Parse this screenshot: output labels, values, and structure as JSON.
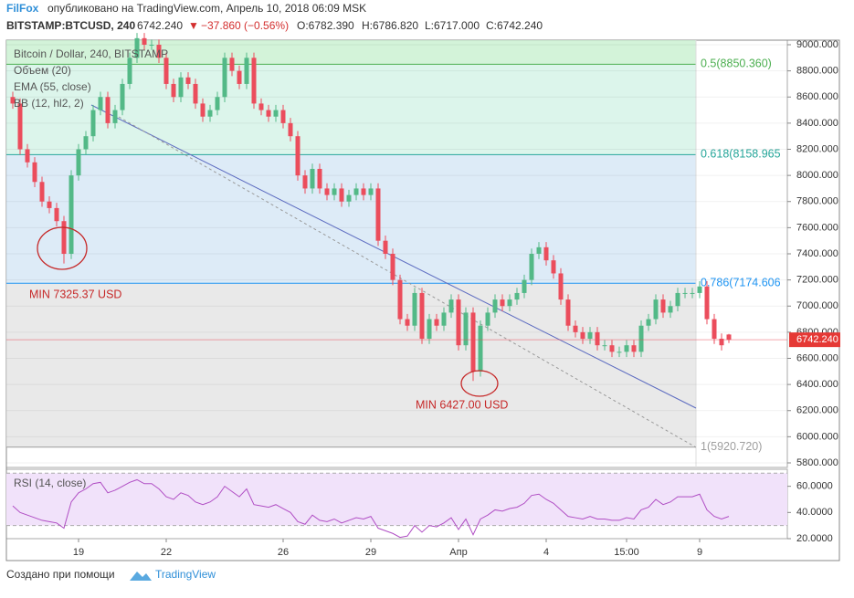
{
  "header": {
    "brand": "FilFox",
    "published": "опубликовано на TradingView.com, Апрель 10, 2018 06:09 MSK",
    "symbol": "BITSTAMP:BTCUSD, 240",
    "last": "6742.240",
    "arrow": "▼",
    "change": "−37.860 (−0.56%)",
    "o": "O:6782.390",
    "h": "H:6786.820",
    "l": "L:6717.000",
    "c": "C:6742.240"
  },
  "legend": [
    "Bitcoin / Dollar, 240, BITSTAMP",
    "Объем (20)",
    "EMA (55, close)",
    "BB (12, hl2, 2)"
  ],
  "footer": {
    "text": "Создано при помощи",
    "brand": "TradingView"
  },
  "chart_data": [
    {
      "type": "candlestick",
      "up_color": "#53b987",
      "down_color": "#eb4d5c",
      "categories": [
        null,
        null,
        null,
        null,
        null,
        null,
        null,
        null,
        null,
        "19",
        null,
        null,
        null,
        null,
        null,
        null,
        null,
        null,
        null,
        null,
        null,
        "22",
        null,
        null,
        null,
        null,
        null,
        null,
        null,
        null,
        null,
        null,
        null,
        null,
        null,
        null,
        null,
        "26",
        null,
        null,
        null,
        null,
        null,
        null,
        null,
        null,
        null,
        null,
        null,
        "29",
        null,
        null,
        null,
        null,
        null,
        null,
        null,
        null,
        null,
        null,
        null,
        "Апр",
        null,
        null,
        null,
        null,
        null,
        null,
        null,
        null,
        null,
        null,
        null,
        "4",
        null,
        null,
        null,
        null,
        null,
        null,
        null,
        null,
        null,
        null,
        "15:00",
        null,
        null,
        null,
        null,
        null,
        null,
        null,
        null,
        null,
        "9",
        null,
        null,
        null,
        null
      ],
      "open": [
        8600,
        8550,
        8200,
        8100,
        7950,
        7800,
        7750,
        7650,
        7400,
        8000,
        8200,
        8300,
        8500,
        8600,
        8400,
        8500,
        8700,
        8900,
        9050,
        9000,
        9000,
        8900,
        8700,
        8600,
        8750,
        8700,
        8550,
        8450,
        8500,
        8600,
        8900,
        8800,
        8700,
        8900,
        8550,
        8500,
        8450,
        8500,
        8400,
        8300,
        8000,
        7900,
        8050,
        7900,
        7850,
        7900,
        7800,
        7850,
        7900,
        7850,
        7900,
        7500,
        7400,
        7200,
        6900,
        6850,
        7100,
        6750,
        6900,
        6850,
        6950,
        7050,
        6700,
        6950,
        6500,
        6850,
        6950,
        7050,
        7000,
        7050,
        7100,
        7200,
        7400,
        7450,
        7350,
        7250,
        7050,
        6850,
        6800,
        6750,
        6800,
        6700,
        6700,
        6650,
        6650,
        6700,
        6650,
        6850,
        6900,
        7050,
        6950,
        7000,
        7100,
        7100,
        7100,
        7150,
        6900,
        6750,
        6782.39
      ],
      "high": [
        8640,
        8590,
        8240,
        8140,
        7990,
        7840,
        7790,
        7690,
        8040,
        8240,
        8340,
        8540,
        8640,
        8640,
        8540,
        8740,
        8940,
        9090,
        9090,
        9040,
        9040,
        8940,
        8740,
        8790,
        8790,
        8740,
        8590,
        8540,
        8640,
        8940,
        8940,
        8840,
        8940,
        8940,
        8590,
        8540,
        8540,
        8540,
        8440,
        8340,
        8040,
        8090,
        8090,
        7940,
        7940,
        7940,
        7890,
        7940,
        7940,
        7940,
        7940,
        7540,
        7440,
        7240,
        6940,
        7140,
        7140,
        6940,
        6940,
        6990,
        7090,
        7090,
        6990,
        6990,
        6890,
        6990,
        7090,
        7090,
        7090,
        7140,
        7240,
        7440,
        7490,
        7490,
        7390,
        7290,
        7090,
        6890,
        6840,
        6840,
        6840,
        6740,
        6740,
        6690,
        6740,
        6740,
        6890,
        6940,
        7090,
        7090,
        7040,
        7140,
        7140,
        7140,
        7190,
        7190,
        6940,
        6790,
        6786.82
      ],
      "low": [
        8510,
        8160,
        8060,
        7910,
        7760,
        7710,
        7610,
        7325.37,
        7360,
        7960,
        8160,
        8260,
        8460,
        8360,
        8360,
        8460,
        8660,
        8860,
        8960,
        8960,
        8860,
        8660,
        8560,
        8560,
        8660,
        8510,
        8410,
        8410,
        8460,
        8560,
        8760,
        8660,
        8660,
        8510,
        8460,
        8410,
        8410,
        8360,
        8260,
        7960,
        7860,
        7860,
        7860,
        7810,
        7810,
        7760,
        7760,
        7810,
        7810,
        7810,
        7460,
        7360,
        7160,
        6860,
        6810,
        6810,
        6710,
        6710,
        6810,
        6810,
        6910,
        6660,
        6660,
        6427,
        6460,
        6810,
        6910,
        6960,
        6960,
        7010,
        7060,
        7160,
        7360,
        7310,
        7210,
        7010,
        6810,
        6760,
        6710,
        6710,
        6660,
        6660,
        6610,
        6610,
        6610,
        6610,
        6610,
        6810,
        6860,
        6910,
        6910,
        6960,
        7060,
        7060,
        7060,
        6860,
        6710,
        6660,
        6717
      ],
      "close": [
        8550,
        8200,
        8100,
        7950,
        7800,
        7750,
        7650,
        7400,
        8000,
        8200,
        8300,
        8500,
        8600,
        8400,
        8500,
        8700,
        8900,
        9050,
        9000,
        9000,
        8900,
        8700,
        8600,
        8750,
        8700,
        8550,
        8450,
        8500,
        8600,
        8900,
        8800,
        8700,
        8900,
        8550,
        8500,
        8450,
        8500,
        8400,
        8300,
        8000,
        7900,
        8050,
        7900,
        7850,
        7900,
        7800,
        7850,
        7900,
        7850,
        7900,
        7500,
        7400,
        7200,
        6900,
        6850,
        7100,
        6750,
        6900,
        6850,
        6950,
        7050,
        6700,
        6950,
        6500,
        6850,
        6950,
        7050,
        7000,
        7050,
        7100,
        7200,
        7400,
        7450,
        7350,
        7250,
        7050,
        6850,
        6800,
        6750,
        6800,
        6700,
        6700,
        6650,
        6650,
        6700,
        6650,
        6850,
        6900,
        7050,
        6950,
        7000,
        7100,
        7100,
        7100,
        7150,
        6900,
        6750,
        6700,
        6742.24
      ],
      "ylim": [
        5765,
        9035
      ],
      "yticks": [
        {
          "value": 9000,
          "label": "9000.000"
        },
        {
          "value": 8800,
          "label": "8800.000"
        },
        {
          "value": 8600,
          "label": "8600.000"
        },
        {
          "value": 8400,
          "label": "8400.000"
        },
        {
          "value": 8200,
          "label": "8200.000"
        },
        {
          "value": 8000,
          "label": "8000.000"
        },
        {
          "value": 7800,
          "label": "7800.000"
        },
        {
          "value": 7600,
          "label": "7600.000"
        },
        {
          "value": 7400,
          "label": "7400.000"
        },
        {
          "value": 7200,
          "label": "7200.000"
        },
        {
          "value": 7000,
          "label": "7000.000"
        },
        {
          "value": 6800,
          "label": "6800.000"
        },
        {
          "value": 6600,
          "label": "6600.000"
        },
        {
          "value": 6400,
          "label": "6400.000"
        },
        {
          "value": 6200,
          "label": "6200.000"
        },
        {
          "value": 6000,
          "label": "6000.000"
        },
        {
          "value": 5800,
          "label": "5800.000"
        }
      ],
      "last_price": {
        "value": 6742.24,
        "label": "6742.240"
      },
      "fib_levels": [
        {
          "value": 8850.36,
          "label": "0.5(8850.360)",
          "color": "#4caf50"
        },
        {
          "value": 8158.965,
          "label": "0.618(8158.965",
          "color": "#26a69a"
        },
        {
          "value": 7174.606,
          "label": "0.786(7174.606",
          "color": "#2196f3"
        },
        {
          "value": 5920.72,
          "label": "1(5920.720)",
          "color": "#9e9e9e"
        }
      ],
      "annotations": [
        {
          "value": 7325.37,
          "label": "MIN 7325.37 USD"
        },
        {
          "value": 6427,
          "label": "MIN 6427.00 USD"
        }
      ]
    },
    {
      "type": "line",
      "title": "RSI (14, close)",
      "color": "#b04ec4",
      "values": [
        45,
        40,
        38,
        36,
        34,
        33,
        32,
        28,
        48,
        55,
        58,
        62,
        63,
        55,
        57,
        60,
        63,
        65,
        62,
        62,
        58,
        52,
        50,
        55,
        53,
        48,
        46,
        48,
        52,
        60,
        56,
        52,
        58,
        46,
        45,
        44,
        46,
        43,
        40,
        33,
        31,
        38,
        34,
        33,
        35,
        32,
        34,
        36,
        35,
        37,
        28,
        26,
        24,
        21,
        22,
        30,
        25,
        30,
        29,
        32,
        36,
        27,
        35,
        23,
        35,
        38,
        42,
        41,
        43,
        44,
        47,
        53,
        54,
        50,
        47,
        42,
        37,
        36,
        35,
        37,
        35,
        35,
        34,
        34,
        36,
        35,
        42,
        44,
        50,
        46,
        48,
        52,
        52,
        52,
        54,
        42,
        37,
        35,
        37
      ],
      "ylim": [
        20,
        73
      ],
      "yticks": [
        {
          "value": 60,
          "label": "60.0000"
        },
        {
          "value": 40,
          "label": "40.0000"
        },
        {
          "value": 20,
          "label": "20.0000"
        }
      ],
      "bands": [
        30,
        70
      ]
    }
  ]
}
